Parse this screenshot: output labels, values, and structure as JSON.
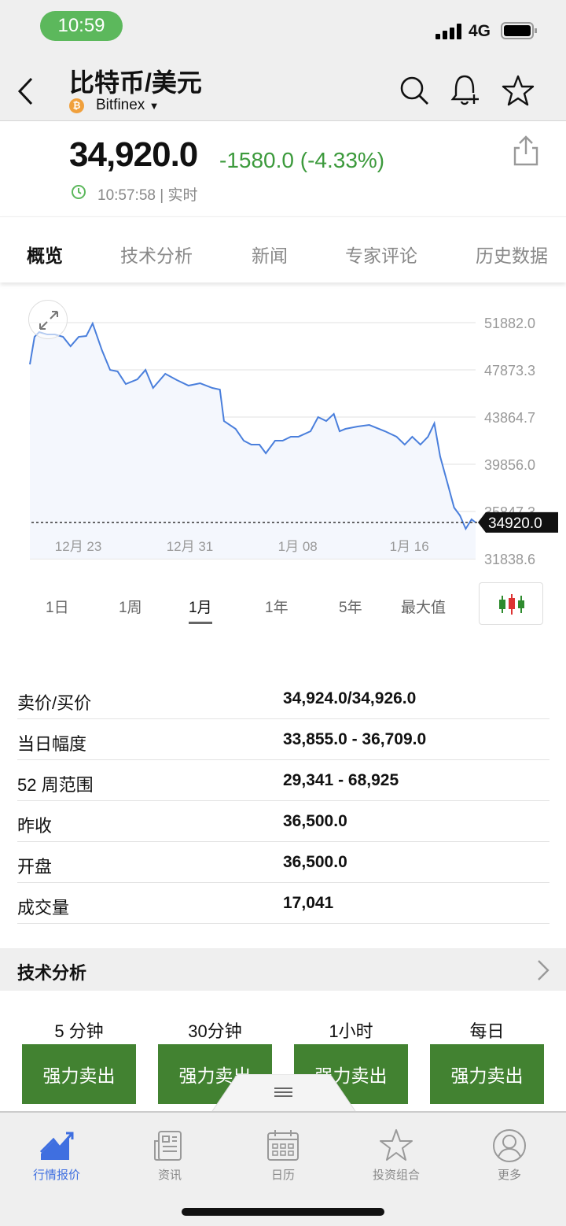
{
  "status_bar": {
    "time": "10:59",
    "network": "4G"
  },
  "header": {
    "title": "比特币/美元",
    "exchange": "Bitfinex",
    "back_icon": "chevron-left-icon",
    "coin_icon": "bitcoin-icon"
  },
  "quote": {
    "price": "34,920.0",
    "change": "-1580.0 (-4.33%)",
    "change_color": "#3c9a3c",
    "timestamp": "10:57:58 | 实时"
  },
  "tabs": [
    {
      "label": "概览",
      "active": true
    },
    {
      "label": "技术分析"
    },
    {
      "label": "新闻"
    },
    {
      "label": "专家评论"
    },
    {
      "label": "历史数据"
    }
  ],
  "chart_data": {
    "type": "area",
    "line_color": "#4a7fdc",
    "y_ticks": [
      "51882.0",
      "47873.3",
      "43864.7",
      "39856.0",
      "35847.3",
      "31838.6"
    ],
    "ylim": [
      31838.6,
      51882.0
    ],
    "x_ticks": [
      {
        "label": "12月 23",
        "date": "12-23 00:00"
      },
      {
        "label": "12月 31",
        "date": "12-31 00:00"
      },
      {
        "label": "1月 08",
        "date": "01-08 00:00"
      },
      {
        "label": "1月 16",
        "date": "01-16 00:00"
      }
    ],
    "xlim": [
      "12-21 05:00",
      "01-22 04:00"
    ],
    "current_value": "34920.0",
    "grid": true,
    "points": [
      [
        "12-21 05:00",
        48338
      ],
      [
        "12-21 13:00",
        50676
      ],
      [
        "12-21 21:00",
        51077
      ],
      [
        "12-22 11:00",
        50876
      ],
      [
        "12-23 00:00",
        50876
      ],
      [
        "12-23 14:00",
        50676
      ],
      [
        "12-24 03:00",
        49875
      ],
      [
        "12-24 17:00",
        50676
      ],
      [
        "12-25 06:00",
        50743
      ],
      [
        "12-25 17:00",
        51812
      ],
      [
        "12-26 09:00",
        49540
      ],
      [
        "12-26 23:00",
        47870
      ],
      [
        "12-27 12:00",
        47736
      ],
      [
        "12-28 02:00",
        46670
      ],
      [
        "12-28 22:00",
        47070
      ],
      [
        "12-29 12:00",
        47870
      ],
      [
        "12-30 01:00",
        46334
      ],
      [
        "12-30 22:00",
        47537
      ],
      [
        "12-31 18:00",
        47003
      ],
      [
        "01-01 14:00",
        46535
      ],
      [
        "01-02 10:00",
        46735
      ],
      [
        "01-03 07:00",
        46334
      ],
      [
        "01-03 20:00",
        46201
      ],
      [
        "01-04 03:00",
        43529
      ],
      [
        "01-04 23:00",
        42861
      ],
      [
        "01-05 13:00",
        41859
      ],
      [
        "01-06 02:00",
        41525
      ],
      [
        "01-06 16:00",
        41525
      ],
      [
        "01-07 03:00",
        40790
      ],
      [
        "01-07 19:00",
        41859
      ],
      [
        "01-08 08:00",
        41859
      ],
      [
        "01-08 22:00",
        42193
      ],
      [
        "01-09 11:00",
        42193
      ],
      [
        "01-10 08:00",
        42660
      ],
      [
        "01-10 21:00",
        43863
      ],
      [
        "01-11 11:00",
        43529
      ],
      [
        "01-12 00:00",
        44130
      ],
      [
        "01-12 10:00",
        42660
      ],
      [
        "01-12 20:00",
        42861
      ],
      [
        "01-13 17:00",
        43061
      ],
      [
        "01-14 13:00",
        43195
      ],
      [
        "01-15 16:00",
        42660
      ],
      [
        "01-16 12:00",
        42193
      ],
      [
        "01-17 02:00",
        41525
      ],
      [
        "01-17 15:00",
        42193
      ],
      [
        "01-18 05:00",
        41525
      ],
      [
        "01-18 18:00",
        42193
      ],
      [
        "01-19 05:00",
        43328
      ],
      [
        "01-19 15:00",
        40522
      ],
      [
        "01-20 04:00",
        38184
      ],
      [
        "01-20 15:00",
        36180
      ],
      [
        "01-21 01:00",
        35512
      ],
      [
        "01-21 11:00",
        34377
      ],
      [
        "01-21 21:00",
        35178
      ],
      [
        "01-22 04:00",
        34920
      ]
    ]
  },
  "ranges": [
    {
      "label": "1日"
    },
    {
      "label": "1周"
    },
    {
      "label": "1月",
      "active": true
    },
    {
      "label": "1年"
    },
    {
      "label": "5年"
    },
    {
      "label": "最大值"
    }
  ],
  "stats": [
    {
      "k": "卖价/买价",
      "v": "34,924.0/34,926.0"
    },
    {
      "k": "当日幅度",
      "v": "33,855.0 - 36,709.0"
    },
    {
      "k": "52 周范围",
      "v": "29,341 - 68,925"
    },
    {
      "k": "昨收",
      "v": "36,500.0"
    },
    {
      "k": "开盘",
      "v": "36,500.0"
    },
    {
      "k": "成交量",
      "v": "17,041"
    }
  ],
  "technical": {
    "title": "技术分析",
    "timeframes": [
      "5 分钟",
      "30分钟",
      "1小时",
      "每日"
    ],
    "signals": [
      "强力卖出",
      "强力卖出",
      "强力卖出",
      "强力卖出"
    ],
    "signal_color": "#428231"
  },
  "nav": [
    {
      "label": "行情报价",
      "icon": "chart-trend-icon",
      "active": true
    },
    {
      "label": "资讯",
      "icon": "newspaper-icon"
    },
    {
      "label": "日历",
      "icon": "calendar-icon"
    },
    {
      "label": "投资组合",
      "icon": "star-icon"
    },
    {
      "label": "更多",
      "icon": "user-icon"
    }
  ]
}
